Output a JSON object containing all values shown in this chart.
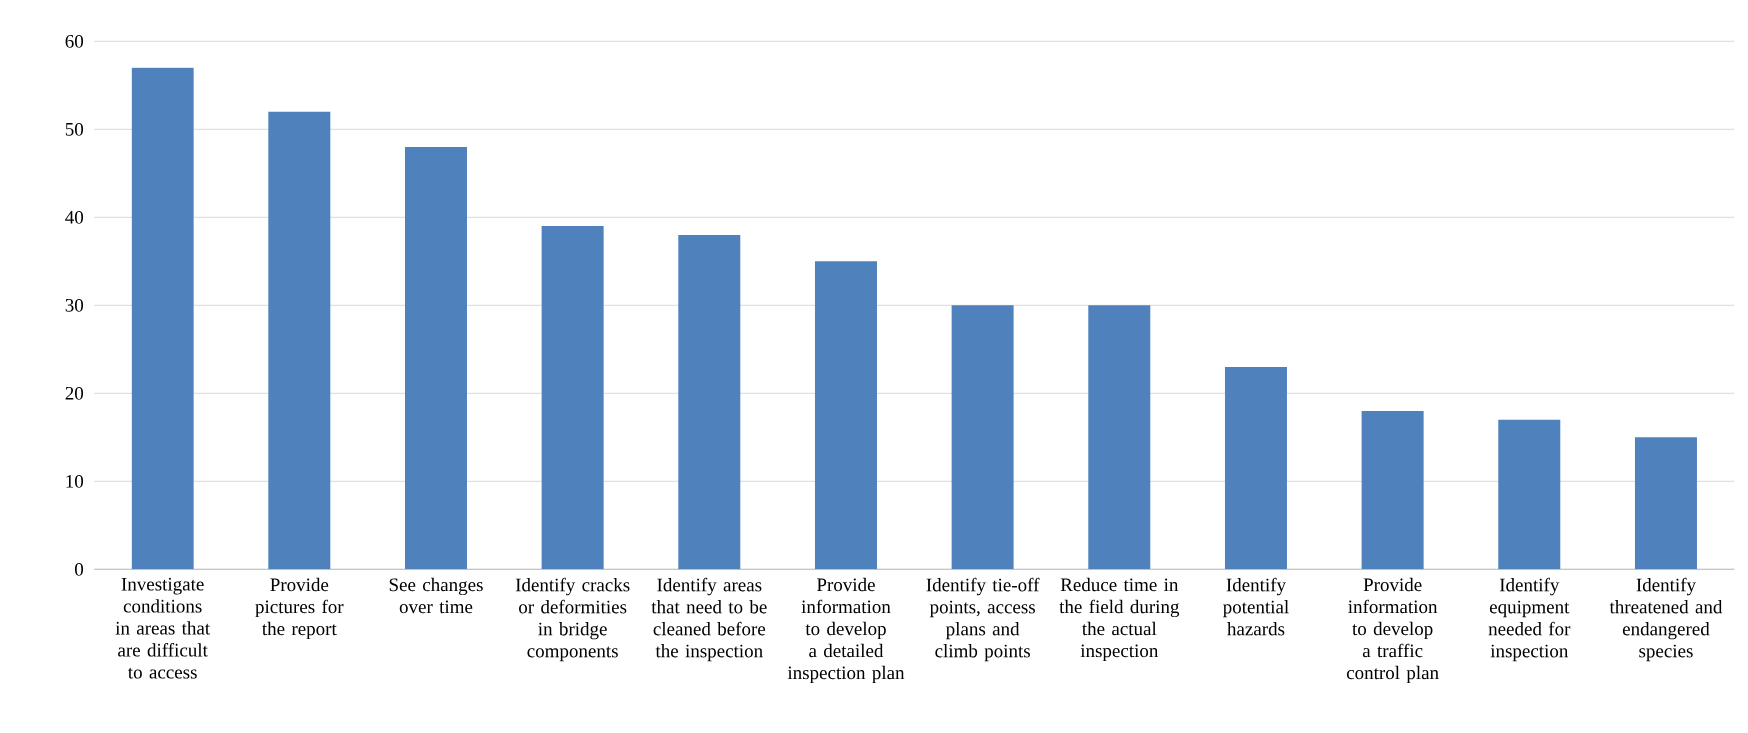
{
  "chart_data": {
    "type": "bar",
    "categories": [
      "Investigate conditions in areas that are difficult to access",
      "Provide pictures for the report",
      "See changes over time",
      "Identify cracks or deformities in bridge components",
      "Identify areas that need to be cleaned before the inspection",
      "Provide information to develop a detailed inspection plan",
      "Identify tie-off points, access plans and climb points",
      "Reduce time in the field during the actual inspection",
      "Identify potential hazards",
      "Provide information to develop a traffic control plan",
      "Identify equipment needed for inspection",
      "Identify threatened and endangered species"
    ],
    "values": [
      57,
      52,
      48,
      39,
      38,
      35,
      30,
      30,
      23,
      18,
      17,
      15
    ],
    "color": "#4f81bd",
    "ylim": [
      0,
      60
    ],
    "yticks": [
      0,
      10,
      20,
      30,
      40,
      50,
      60
    ],
    "grid": "y"
  }
}
